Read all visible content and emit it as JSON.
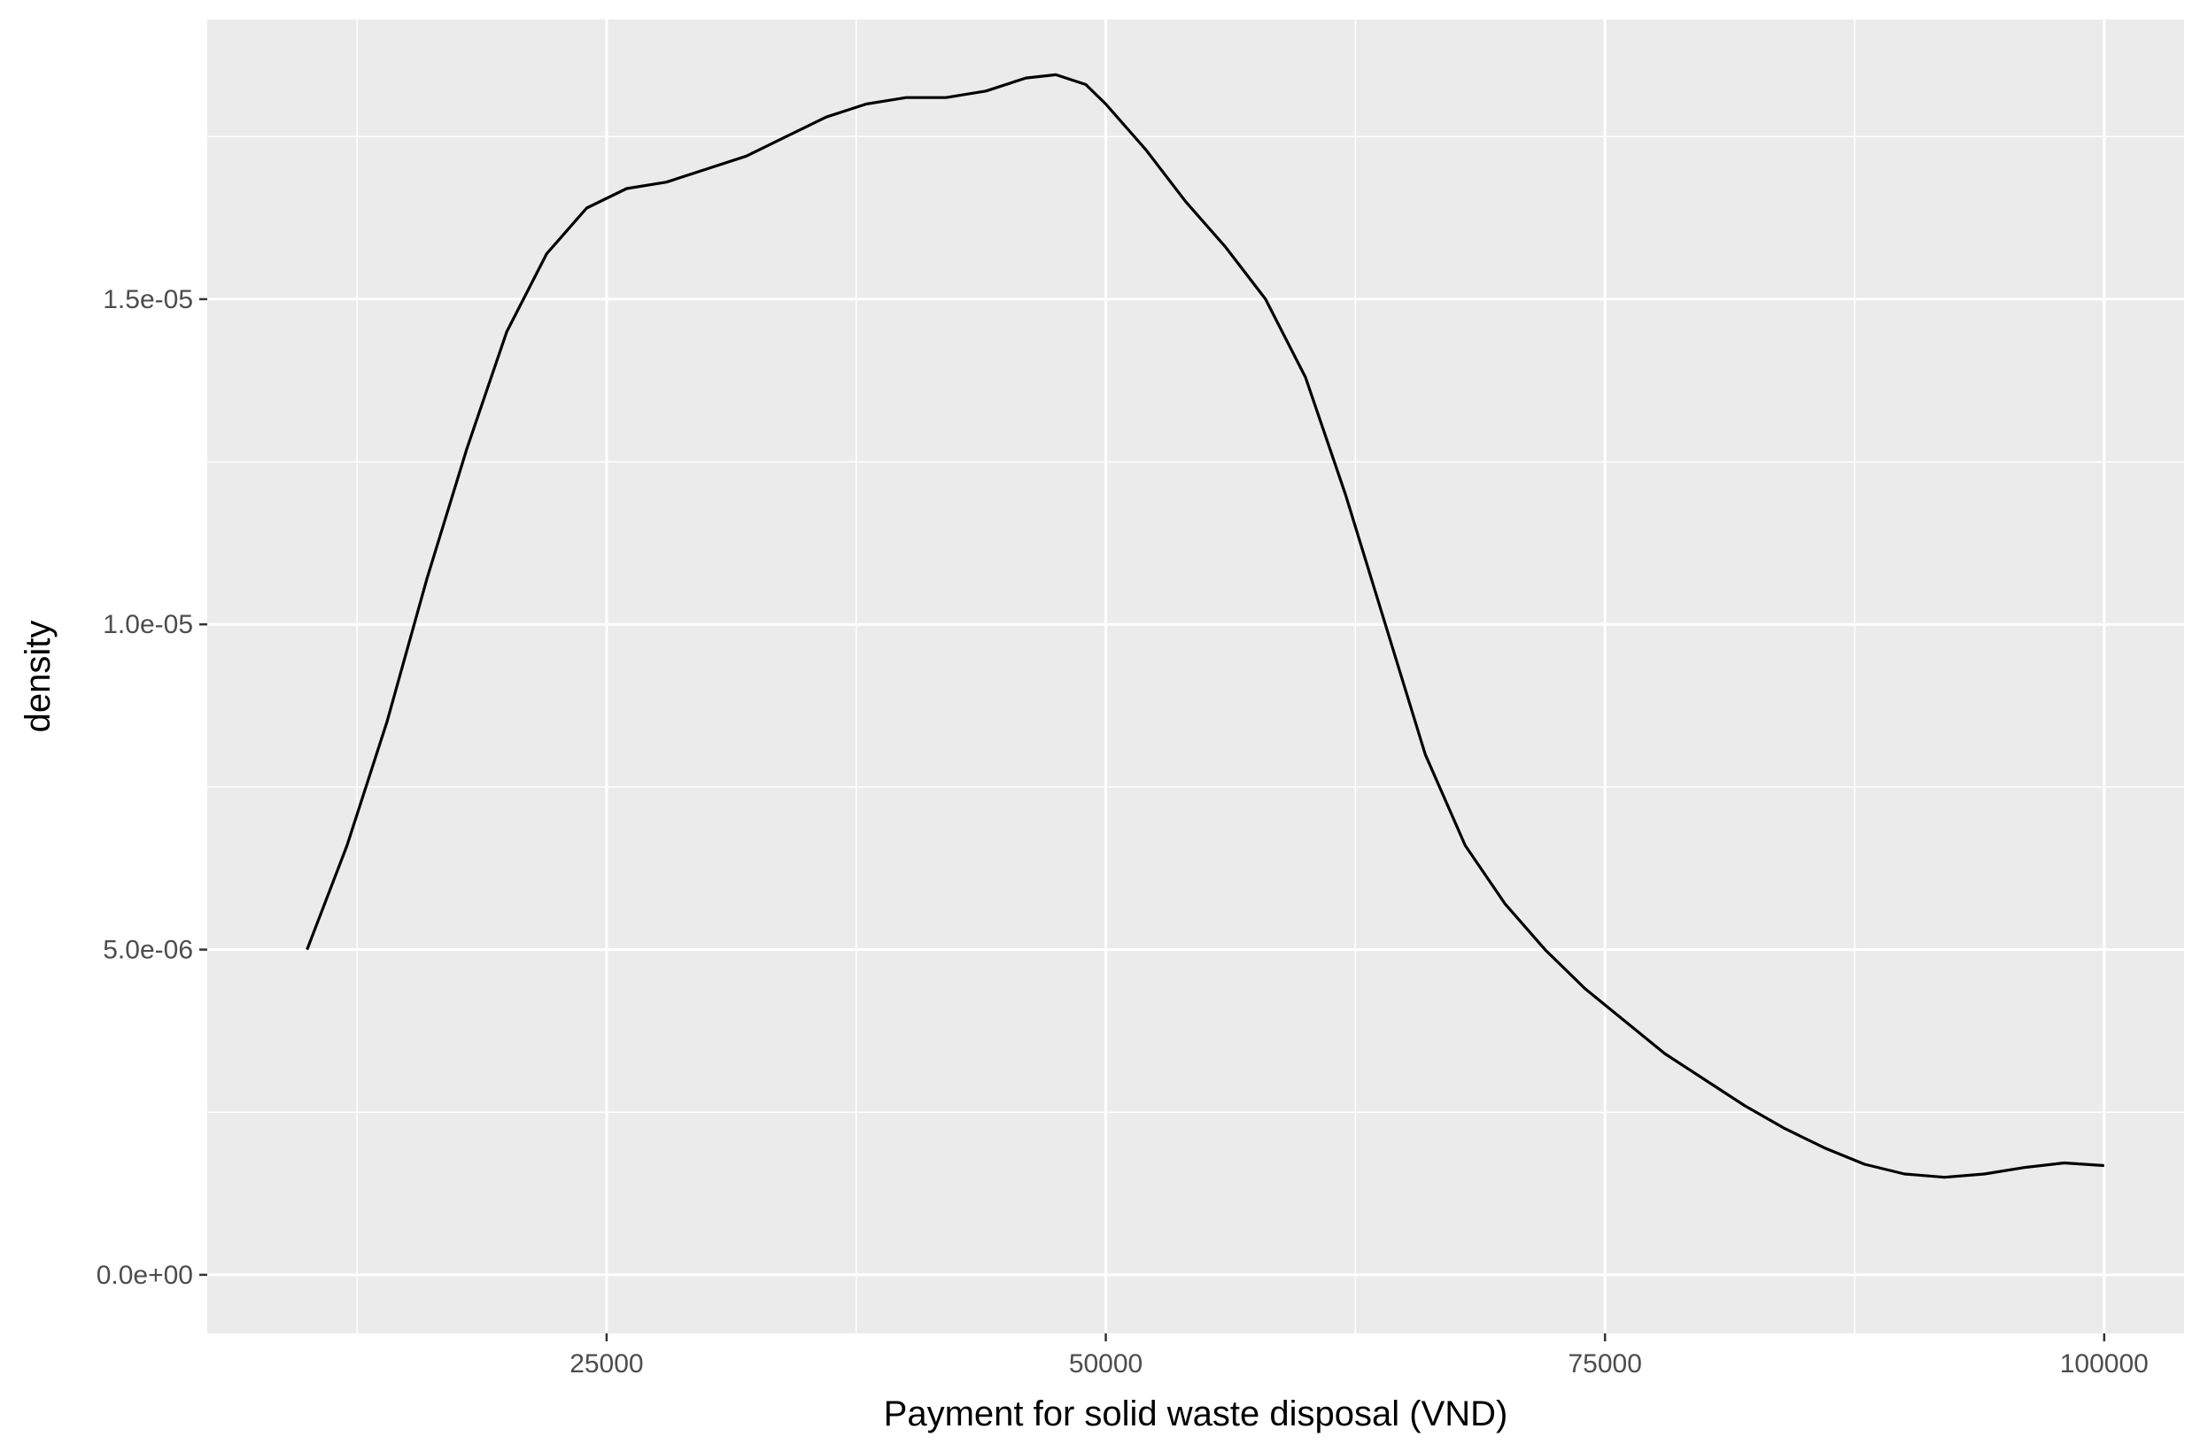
{
  "chart_data": {
    "type": "line",
    "title": "",
    "xlabel": "Payment for solid waste disposal (VND)",
    "ylabel": "density",
    "xlim": [
      5000,
      104000
    ],
    "ylim": [
      -9e-07,
      1.93e-05
    ],
    "x_ticks": [
      25000,
      50000,
      75000,
      100000
    ],
    "x_tick_labels": [
      "25000",
      "50000",
      "75000",
      "100000"
    ],
    "x_minor_ticks": [
      12500,
      37500,
      62500,
      87500
    ],
    "y_ticks": [
      0,
      5e-06,
      1e-05,
      1.5e-05
    ],
    "y_tick_labels": [
      "0.0e+00",
      "5.0e-06",
      "1.0e-05",
      "1.5e-05"
    ],
    "y_minor_ticks": [
      2.5e-06,
      7.5e-06,
      1.25e-05,
      1.75e-05
    ],
    "grid": true,
    "legend": "none",
    "colors": {
      "panel": "#ebebeb",
      "grid": "#ffffff",
      "line": "#000000",
      "tick_label": "#4d4d4d",
      "axis_title": "#000000"
    },
    "series": [
      {
        "x": [
          10000,
          12000,
          14000,
          16000,
          18000,
          20000,
          22000,
          24000,
          26000,
          28000,
          30000,
          32000,
          34000,
          36000,
          38000,
          40000,
          42000,
          44000,
          46000,
          47500,
          49000,
          50000,
          52000,
          54000,
          56000,
          58000,
          60000,
          62000,
          64000,
          66000,
          68000,
          70000,
          72000,
          74000,
          76000,
          78000,
          80000,
          82000,
          84000,
          86000,
          88000,
          90000,
          92000,
          94000,
          96000,
          98000,
          100000
        ],
        "y": [
          5e-06,
          6.6e-06,
          8.5e-06,
          1.07e-05,
          1.27e-05,
          1.45e-05,
          1.57e-05,
          1.64e-05,
          1.67e-05,
          1.68e-05,
          1.7e-05,
          1.72e-05,
          1.75e-05,
          1.78e-05,
          1.8e-05,
          1.81e-05,
          1.81e-05,
          1.82e-05,
          1.84e-05,
          1.845e-05,
          1.83e-05,
          1.8e-05,
          1.73e-05,
          1.65e-05,
          1.58e-05,
          1.5e-05,
          1.38e-05,
          1.2e-05,
          1e-05,
          8e-06,
          6.6e-06,
          5.7e-06,
          5e-06,
          4.4e-06,
          3.9e-06,
          3.4e-06,
          3e-06,
          2.6e-06,
          2.25e-06,
          1.95e-06,
          1.7e-06,
          1.55e-06,
          1.5e-06,
          1.55e-06,
          1.65e-06,
          1.72e-06,
          1.68e-06
        ]
      }
    ]
  }
}
